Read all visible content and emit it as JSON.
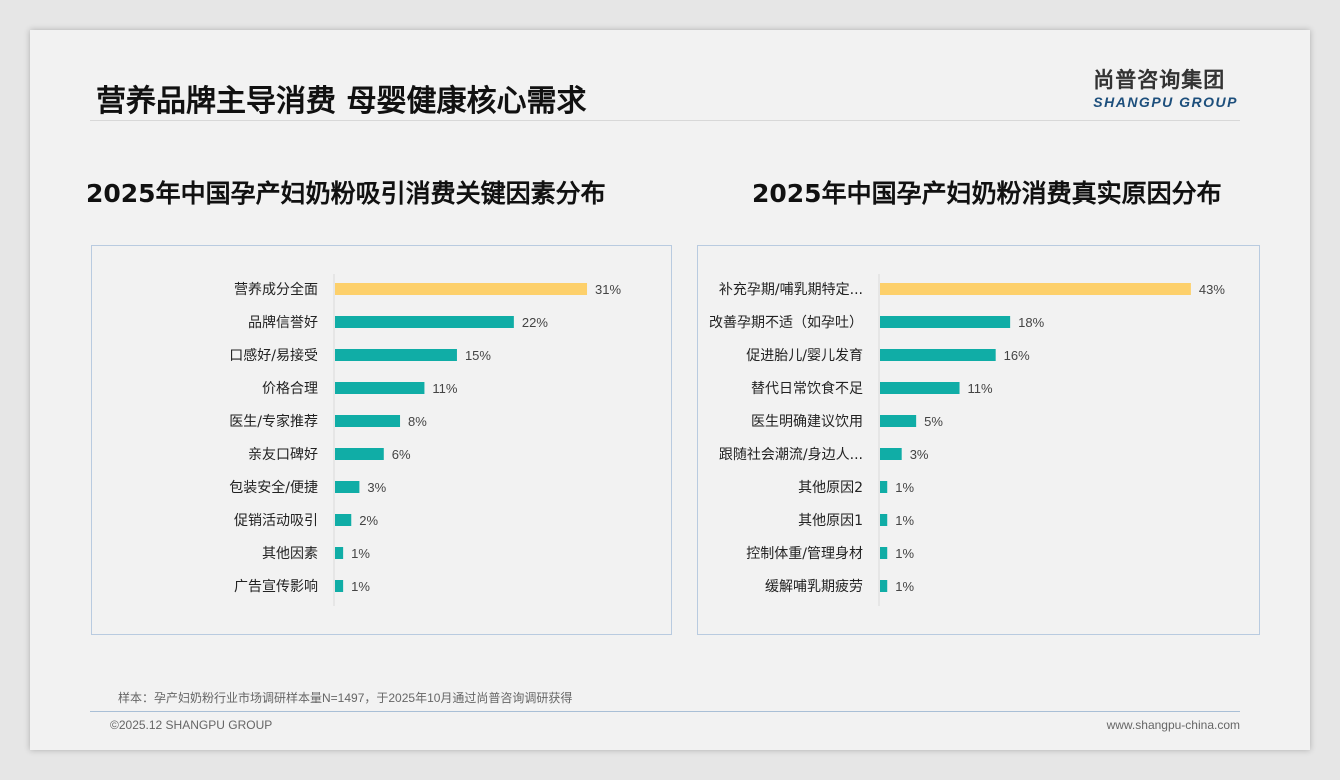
{
  "header": {
    "title": "营养品牌主导消费 母婴健康核心需求",
    "logo_cn": "尚普咨询集团",
    "logo_en": "SHANGPU GROUP"
  },
  "chart_data": [
    {
      "type": "bar",
      "orientation": "horizontal",
      "title": "2025年中国孕产妇奶粉吸引消费关键因素分布",
      "categories": [
        "营养成分全面",
        "品牌信誉好",
        "口感好/易接受",
        "价格合理",
        "医生/专家推荐",
        "亲友口碑好",
        "包装安全/便捷",
        "促销活动吸引",
        "其他因素",
        "广告宣传影响"
      ],
      "values": [
        31,
        22,
        15,
        11,
        8,
        6,
        3,
        2,
        1,
        1
      ],
      "unit": "%",
      "highlight_color": "#fdd06b",
      "bar_color": "#10ada6"
    },
    {
      "type": "bar",
      "orientation": "horizontal",
      "title": "2025年中国孕产妇奶粉消费真实原因分布",
      "categories": [
        "补充孕期/哺乳期特定...",
        "改善孕期不适（如孕吐）",
        "促进胎儿/婴儿发育",
        "替代日常饮食不足",
        "医生明确建议饮用",
        "跟随社会潮流/身边人...",
        "其他原因2",
        "其他原因1",
        "控制体重/管理身材",
        "缓解哺乳期疲劳"
      ],
      "values": [
        43,
        18,
        16,
        11,
        5,
        3,
        1,
        1,
        1,
        1
      ],
      "unit": "%",
      "highlight_color": "#fdd06b",
      "bar_color": "#10ada6"
    }
  ],
  "footer": {
    "note": "样本：孕产妇奶粉行业市场调研样本量N=1497，于2025年10月通过尚普咨询调研获得",
    "copyright": "©2025.12 SHANGPU GROUP",
    "website": "www.shangpu-china.com"
  }
}
